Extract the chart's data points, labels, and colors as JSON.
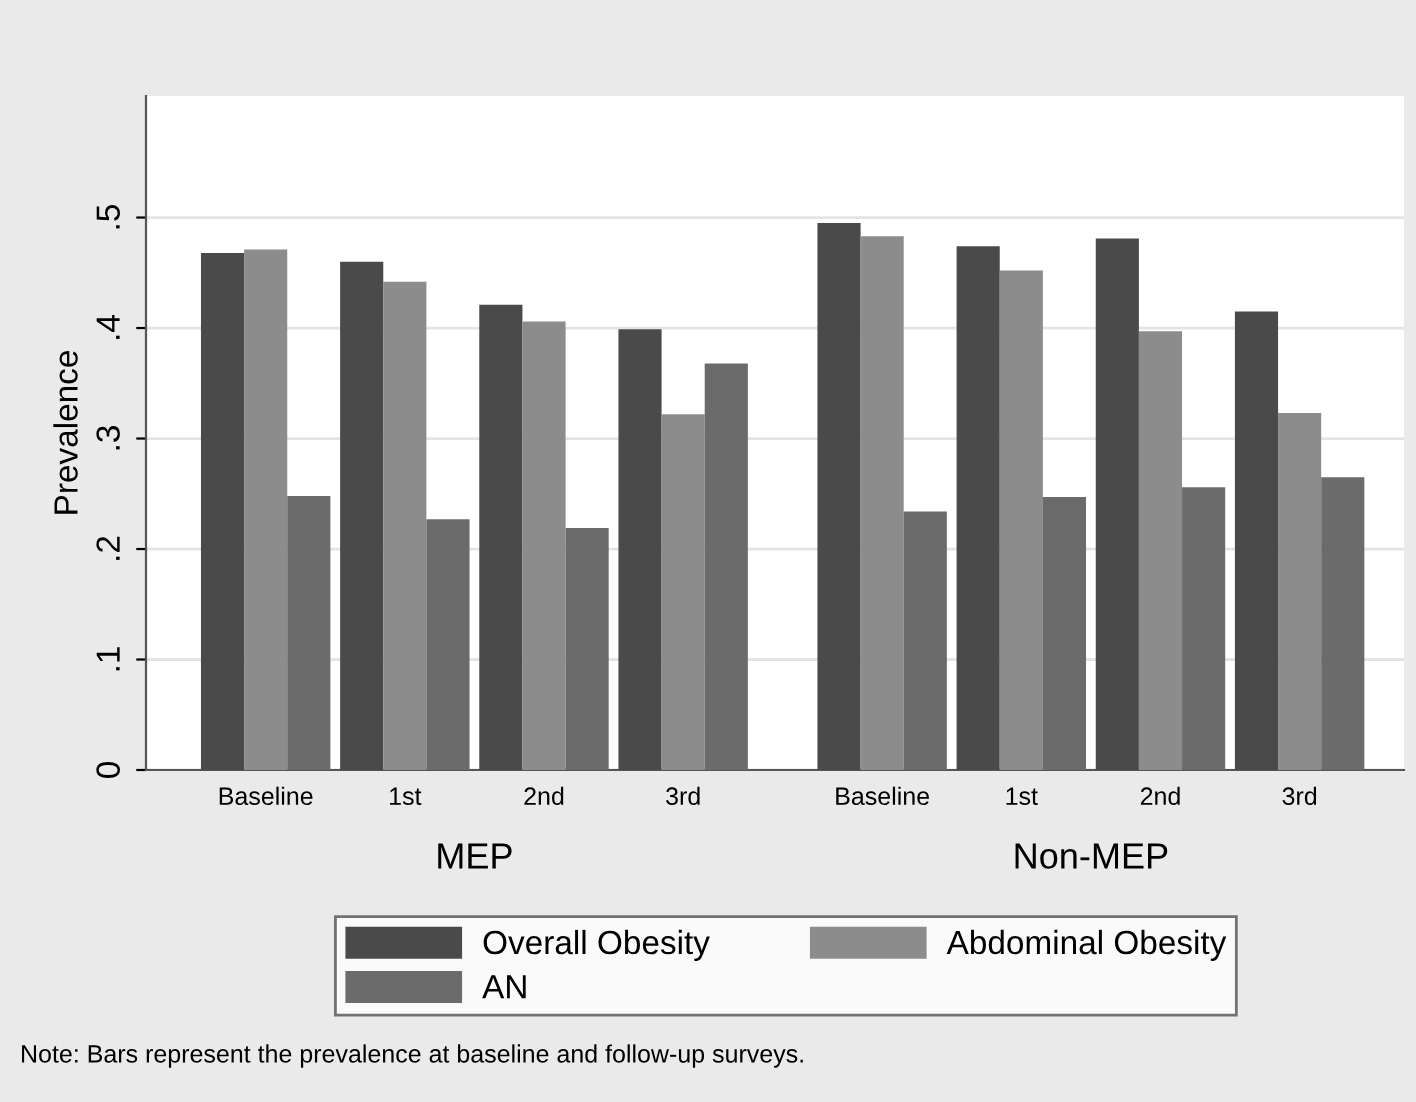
{
  "chart_data": {
    "type": "bar",
    "ylabel": "Prevalence",
    "categories": [
      "Baseline",
      "1st",
      "2nd",
      "3rd",
      "Baseline",
      "1st",
      "2nd",
      "3rd"
    ],
    "series": [
      {
        "name": "Overall Obesity",
        "color": "#4a4a4a",
        "values": [
          0.468,
          0.46,
          0.421,
          0.399,
          0.495,
          0.474,
          0.481,
          0.415
        ]
      },
      {
        "name": "Abdominal Obesity",
        "color": "#8c8c8c",
        "values": [
          0.471,
          0.442,
          0.406,
          0.322,
          0.483,
          0.452,
          0.397,
          0.323
        ]
      },
      {
        "name": "AN",
        "color": "#6b6b6b",
        "values": [
          0.248,
          0.227,
          0.219,
          0.368,
          0.234,
          0.247,
          0.256,
          0.265
        ]
      }
    ],
    "ylim": [
      0,
      0.61
    ],
    "yticks": [
      0,
      {
        "value": 0.1,
        "label": ".1"
      },
      {
        "value": 0.2,
        "label": ".2"
      },
      {
        "value": 0.3,
        "label": ".3"
      },
      {
        "value": 0.4,
        "label": ".4"
      },
      {
        "value": 0.5,
        "label": ".5"
      }
    ],
    "grid": "y",
    "legend": "bottom",
    "annotations": [
      "MEP",
      "Non-MEP",
      "Note: Bars represent the prevalence at baseline and follow-up surveys."
    ]
  }
}
